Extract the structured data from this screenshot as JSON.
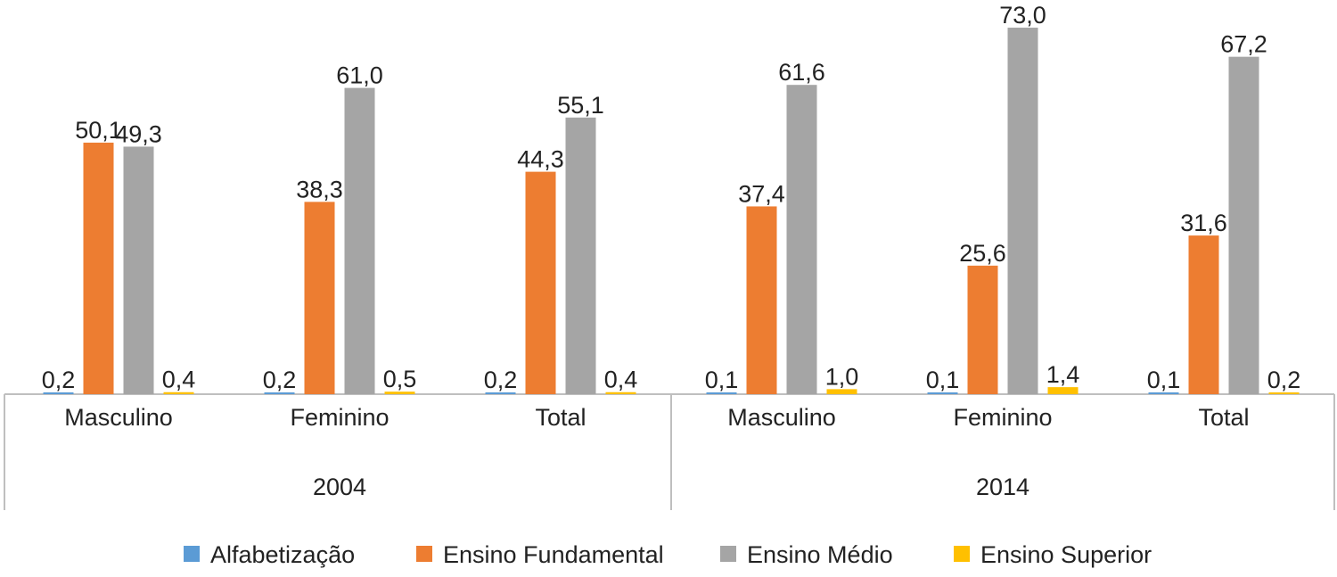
{
  "chart_data": {
    "type": "bar",
    "groups": [
      {
        "label": "2004",
        "categories": [
          "Masculino",
          "Feminino",
          "Total"
        ]
      },
      {
        "label": "2014",
        "categories": [
          "Masculino",
          "Feminino",
          "Total"
        ]
      }
    ],
    "series": [
      {
        "name": "Alfabetização",
        "color": "#5b9bd5",
        "values": [
          0.2,
          0.2,
          0.2,
          0.1,
          0.1,
          0.1
        ],
        "labels": [
          "0,2",
          "0,2",
          "0,2",
          "0,1",
          "0,1",
          "0,1"
        ]
      },
      {
        "name": "Ensino Fundamental",
        "color": "#ed7d31",
        "values": [
          50.1,
          38.3,
          44.3,
          37.4,
          25.6,
          31.6
        ],
        "labels": [
          "50,1",
          "38,3",
          "44,3",
          "37,4",
          "25,6",
          "31,6"
        ]
      },
      {
        "name": "Ensino Médio",
        "color": "#a5a5a5",
        "values": [
          49.3,
          61.0,
          55.1,
          61.6,
          73.0,
          67.2
        ],
        "labels": [
          "49,3",
          "61,0",
          "55,1",
          "61,6",
          "73,0",
          "67,2"
        ]
      },
      {
        "name": "Ensino Superior",
        "color": "#ffc000",
        "values": [
          0.4,
          0.5,
          0.4,
          1.0,
          1.4,
          0.2
        ],
        "labels": [
          "0,4",
          "0,5",
          "0,4",
          "1,0",
          "1,4",
          "0,2"
        ]
      }
    ],
    "ylim": [
      0,
      75
    ],
    "grid": false,
    "legend": "bottom"
  }
}
